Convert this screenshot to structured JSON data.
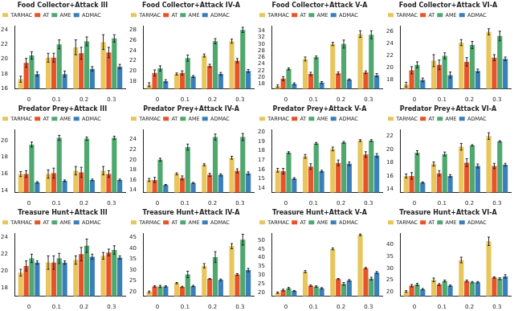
{
  "chart_data": [
    {
      "type": "bar",
      "title": "Food Collector+Attack III",
      "categories": [
        "0",
        "0.1",
        "0.2",
        "0.3"
      ],
      "ylim": [
        16,
        24.5
      ],
      "yticks": [
        16,
        18,
        20,
        22,
        24
      ],
      "grid": false,
      "legend": "top",
      "series": [
        {
          "name": "TARMAC",
          "color": "#e8c65e",
          "values": [
            17.3,
            20.2,
            21.6,
            22.3
          ],
          "errors": [
            0.4,
            0.6,
            1.0,
            1.0
          ]
        },
        {
          "name": "AT",
          "color": "#e8542a",
          "values": [
            19.5,
            20.2,
            20.8,
            20.9
          ],
          "errors": [
            0.6,
            0.6,
            0.8,
            0.7
          ]
        },
        {
          "name": "AME",
          "color": "#4fa86f",
          "values": [
            20.5,
            22.0,
            22.4,
            22.8
          ],
          "errors": [
            0.5,
            0.6,
            0.6,
            0.5
          ]
        },
        {
          "name": "ADMAC",
          "color": "#3b7fb8",
          "values": [
            18.0,
            18.0,
            18.7,
            19.0
          ],
          "errors": [
            0.3,
            0.4,
            0.3,
            0.3
          ]
        }
      ]
    },
    {
      "type": "bar",
      "title": "Food Collector+Attack IV-A",
      "categories": [
        "0",
        "0.1",
        "0.2",
        "0.3"
      ],
      "ylim": [
        16.5,
        28.8
      ],
      "yticks": [
        18,
        20,
        22,
        24,
        26,
        28
      ],
      "grid": false,
      "legend": "top",
      "series": [
        {
          "name": "TARMAC",
          "color": "#e8c65e",
          "values": [
            17.3,
            19.4,
            23.0,
            25.8
          ],
          "errors": [
            0.4,
            0.2,
            0.3,
            0.4
          ]
        },
        {
          "name": "AT",
          "color": "#e8542a",
          "values": [
            19.6,
            19.6,
            21.0,
            22.0
          ],
          "errors": [
            0.6,
            0.4,
            0.3,
            0.4
          ]
        },
        {
          "name": "AME",
          "color": "#4fa86f",
          "values": [
            20.5,
            22.5,
            25.8,
            28.0
          ],
          "errors": [
            0.5,
            0.6,
            0.5,
            0.5
          ]
        },
        {
          "name": "ADMAC",
          "color": "#3b7fb8",
          "values": [
            18.0,
            18.9,
            19.4,
            20.0
          ],
          "errors": [
            0.3,
            0.2,
            0.3,
            0.3
          ]
        }
      ]
    },
    {
      "type": "bar",
      "title": "Food Collector+Attack V-A",
      "categories": [
        "0",
        "0.1",
        "0.2",
        "0.3"
      ],
      "ylim": [
        16.5,
        35.5
      ],
      "yticks": [
        18,
        20,
        22,
        24,
        26,
        28,
        30,
        32,
        34
      ],
      "grid": false,
      "legend": "top",
      "series": [
        {
          "name": "TARMAC",
          "color": "#e8c65e",
          "values": [
            17.3,
            25.5,
            30.0,
            33.0
          ],
          "errors": [
            0.4,
            0.6,
            0.5,
            1.0
          ]
        },
        {
          "name": "AT",
          "color": "#e8542a",
          "values": [
            19.6,
            21.0,
            21.2,
            21.5
          ],
          "errors": [
            0.6,
            0.5,
            0.4,
            0.4
          ]
        },
        {
          "name": "AME",
          "color": "#4fa86f",
          "values": [
            22.5,
            26.0,
            30.0,
            32.8
          ],
          "errors": [
            0.3,
            0.4,
            1.2,
            1.2
          ]
        },
        {
          "name": "ADMAC",
          "color": "#3b7fb8",
          "values": [
            18.0,
            18.4,
            19.3,
            20.6
          ],
          "errors": [
            0.3,
            0.3,
            0.2,
            0.5
          ]
        }
      ]
    },
    {
      "type": "bar",
      "title": "Food Collector+Attack VI-A",
      "categories": [
        "0",
        "0.1",
        "0.2",
        "0.3"
      ],
      "ylim": [
        16.5,
        27
      ],
      "yticks": [
        18,
        20,
        22,
        24,
        26
      ],
      "grid": false,
      "legend": "top",
      "series": [
        {
          "name": "TARMAC",
          "color": "#e8c65e",
          "values": [
            17.2,
            21.2,
            24.2,
            26.0
          ],
          "errors": [
            0.4,
            1.0,
            0.5,
            0.5
          ]
        },
        {
          "name": "AT",
          "color": "#e8542a",
          "values": [
            19.6,
            20.5,
            21.0,
            21.7
          ],
          "errors": [
            0.6,
            0.8,
            0.7,
            0.5
          ]
        },
        {
          "name": "AME",
          "color": "#4fa86f",
          "values": [
            20.5,
            22.0,
            23.8,
            25.3
          ],
          "errors": [
            0.5,
            0.5,
            0.6,
            0.8
          ]
        },
        {
          "name": "ADMAC",
          "color": "#3b7fb8",
          "values": [
            18.0,
            18.8,
            19.5,
            21.5
          ],
          "errors": [
            0.3,
            0.5,
            0.3,
            0.3
          ]
        }
      ]
    },
    {
      "type": "bar",
      "title": "Predator Prey+Attack III",
      "categories": [
        "0",
        "0.1",
        "0.2",
        "0.3"
      ],
      "ylim": [
        13.8,
        21.3
      ],
      "yticks": [
        14,
        16,
        18,
        20
      ],
      "grid": false,
      "legend": "top",
      "series": [
        {
          "name": "TARMAC",
          "color": "#e8c65e",
          "values": [
            16.0,
            16.0,
            16.4,
            16.4
          ],
          "errors": [
            0.3,
            0.5,
            0.5,
            0.5
          ]
        },
        {
          "name": "AT",
          "color": "#e8542a",
          "values": [
            16.0,
            16.1,
            16.2,
            16.0
          ],
          "errors": [
            0.4,
            0.6,
            0.6,
            0.4
          ]
        },
        {
          "name": "AME",
          "color": "#4fa86f",
          "values": [
            19.5,
            20.3,
            20.2,
            20.3
          ],
          "errors": [
            0.3,
            0.3,
            0.2,
            0.2
          ]
        },
        {
          "name": "ADMAC",
          "color": "#3b7fb8",
          "values": [
            15.0,
            15.2,
            15.3,
            15.3
          ],
          "errors": [
            0.1,
            0.1,
            0.1,
            0.1
          ]
        }
      ]
    },
    {
      "type": "bar",
      "title": "Predator Prey+Attack IV-A",
      "categories": [
        "0",
        "0.1",
        "0.2",
        "0.3"
      ],
      "ylim": [
        13.5,
        26
      ],
      "yticks": [
        14,
        16,
        18,
        20,
        22,
        24
      ],
      "grid": false,
      "legend": "top",
      "series": [
        {
          "name": "TARMAC",
          "color": "#e8c65e",
          "values": [
            16.0,
            17.2,
            19.0,
            20.4
          ],
          "errors": [
            0.3,
            0.2,
            0.2,
            0.3
          ]
        },
        {
          "name": "AT",
          "color": "#e8542a",
          "values": [
            16.0,
            16.4,
            17.0,
            17.8
          ],
          "errors": [
            0.5,
            0.4,
            0.3,
            0.4
          ]
        },
        {
          "name": "AME",
          "color": "#4fa86f",
          "values": [
            20.0,
            22.5,
            24.5,
            24.5
          ],
          "errors": [
            0.3,
            0.6,
            0.6,
            0.7
          ]
        },
        {
          "name": "ADMAC",
          "color": "#3b7fb8",
          "values": [
            15.0,
            15.4,
            17.0,
            17.3
          ],
          "errors": [
            0.1,
            0.1,
            0.2,
            0.3
          ]
        }
      ]
    },
    {
      "type": "bar",
      "title": "Predator Prey+Attack V-A",
      "categories": [
        "0",
        "0.1",
        "0.2",
        "0.3"
      ],
      "ylim": [
        13.5,
        20.3
      ],
      "yticks": [
        14,
        15,
        16,
        17,
        18,
        19,
        20
      ],
      "grid": false,
      "legend": "top",
      "series": [
        {
          "name": "TARMAC",
          "color": "#e8c65e",
          "values": [
            15.9,
            17.4,
            18.2,
            19.1
          ],
          "errors": [
            0.2,
            0.2,
            0.2,
            0.1
          ]
        },
        {
          "name": "AT",
          "color": "#e8542a",
          "values": [
            15.8,
            16.3,
            16.7,
            17.6
          ],
          "errors": [
            0.3,
            0.3,
            0.3,
            0.3
          ]
        },
        {
          "name": "AME",
          "color": "#4fa86f",
          "values": [
            17.8,
            18.8,
            18.9,
            19.1
          ],
          "errors": [
            0.1,
            0.1,
            0.1,
            0.1
          ]
        },
        {
          "name": "ADMAC",
          "color": "#3b7fb8",
          "values": [
            15.0,
            15.8,
            16.6,
            17.5
          ],
          "errors": [
            0.1,
            0.1,
            0.2,
            0.2
          ]
        }
      ]
    },
    {
      "type": "bar",
      "title": "Predator Prey+Attack VI-A",
      "categories": [
        "0",
        "0.1",
        "0.2",
        "0.3"
      ],
      "ylim": [
        13.5,
        23
      ],
      "yticks": [
        14,
        16,
        18,
        20,
        22
      ],
      "grid": false,
      "legend": "top",
      "series": [
        {
          "name": "TARMAC",
          "color": "#e8c65e",
          "values": [
            16.0,
            17.8,
            20.4,
            22.0
          ],
          "errors": [
            0.3,
            0.3,
            0.5,
            0.5
          ]
        },
        {
          "name": "AT",
          "color": "#e8542a",
          "values": [
            16.0,
            16.4,
            18.0,
            17.5
          ],
          "errors": [
            0.5,
            0.4,
            0.6,
            0.4
          ]
        },
        {
          "name": "AME",
          "color": "#4fa86f",
          "values": [
            19.5,
            19.3,
            20.6,
            21.2
          ],
          "errors": [
            0.3,
            0.3,
            0.1,
            0.1
          ]
        },
        {
          "name": "ADMAC",
          "color": "#3b7fb8",
          "values": [
            15.0,
            16.0,
            17.5,
            17.7
          ],
          "errors": [
            0.1,
            0.2,
            0.3,
            0.2
          ]
        }
      ]
    },
    {
      "type": "bar",
      "title": "Treasure Hunt+Attack III",
      "categories": [
        "0",
        "0.1",
        "0.2",
        "0.3"
      ],
      "ylim": [
        17,
        24.5
      ],
      "yticks": [
        18,
        20,
        22,
        24
      ],
      "grid": false,
      "legend": "top",
      "series": [
        {
          "name": "TARMAC",
          "color": "#e8c65e",
          "values": [
            19.8,
            21.0,
            21.3,
            21.8
          ],
          "errors": [
            0.4,
            0.8,
            0.5,
            0.4
          ]
        },
        {
          "name": "AT",
          "color": "#e8542a",
          "values": [
            20.6,
            21.0,
            22.0,
            22.2
          ],
          "errors": [
            0.6,
            0.8,
            0.8,
            0.4
          ]
        },
        {
          "name": "AME",
          "color": "#4fa86f",
          "values": [
            21.5,
            21.5,
            23.0,
            22.5
          ],
          "errors": [
            0.5,
            0.6,
            0.8,
            0.5
          ]
        },
        {
          "name": "ADMAC",
          "color": "#3b7fb8",
          "values": [
            21.0,
            21.0,
            21.7,
            21.6
          ],
          "errors": [
            0.2,
            0.2,
            0.3,
            0.2
          ]
        }
      ]
    },
    {
      "type": "bar",
      "title": "Treasure Hunt+Attack IV-A",
      "categories": [
        "0",
        "0.1",
        "0.2",
        "0.3"
      ],
      "ylim": [
        18,
        47
      ],
      "yticks": [
        20,
        25,
        30,
        35,
        40,
        45
      ],
      "grid": false,
      "legend": "top",
      "series": [
        {
          "name": "TARMAC",
          "color": "#e8c65e",
          "values": [
            20.0,
            24.0,
            32.0,
            41.0
          ],
          "errors": [
            0.4,
            0.3,
            1.0,
            1.2
          ]
        },
        {
          "name": "AT",
          "color": "#e8542a",
          "values": [
            22.5,
            22.3,
            26.0,
            28.0
          ],
          "errors": [
            0.3,
            0.3,
            0.2,
            0.4
          ]
        },
        {
          "name": "AME",
          "color": "#4fa86f",
          "values": [
            22.5,
            28.0,
            36.0,
            44.0
          ],
          "errors": [
            0.5,
            1.5,
            2.5,
            2.5
          ]
        },
        {
          "name": "ADMAC",
          "color": "#3b7fb8",
          "values": [
            22.5,
            22.7,
            25.5,
            30.0
          ],
          "errors": [
            0.3,
            0.3,
            0.4,
            0.8
          ]
        }
      ]
    },
    {
      "type": "bar",
      "title": "Treasure Hunt+Attack V-A",
      "categories": [
        "0",
        "0.1",
        "0.2",
        "0.3"
      ],
      "ylim": [
        18,
        54
      ],
      "yticks": [
        20,
        25,
        30,
        35,
        40,
        45,
        50
      ],
      "grid": false,
      "legend": "top",
      "series": [
        {
          "name": "TARMAC",
          "color": "#e8c65e",
          "values": [
            20.0,
            32.0,
            45.0,
            53.0
          ],
          "errors": [
            0.4,
            0.6,
            0.5,
            0.5
          ]
        },
        {
          "name": "AT",
          "color": "#e8542a",
          "values": [
            21.5,
            24.0,
            27.8,
            34.0
          ],
          "errors": [
            0.5,
            0.4,
            0.3,
            0.4
          ]
        },
        {
          "name": "AME",
          "color": "#4fa86f",
          "values": [
            22.5,
            23.5,
            25.0,
            28.0
          ],
          "errors": [
            0.5,
            0.4,
            0.8,
            0.8
          ]
        },
        {
          "name": "ADMAC",
          "color": "#3b7fb8",
          "values": [
            21.0,
            22.5,
            27.0,
            31.5
          ],
          "errors": [
            0.3,
            0.4,
            0.5,
            0.6
          ]
        }
      ]
    },
    {
      "type": "bar",
      "title": "Treasure Hunt+Attack VI-A",
      "categories": [
        "0",
        "0.1",
        "0.2",
        "0.3"
      ],
      "ylim": [
        18,
        45
      ],
      "yticks": [
        20,
        25,
        30,
        35,
        40
      ],
      "grid": false,
      "legend": "top",
      "series": [
        {
          "name": "TARMAC",
          "color": "#e8c65e",
          "values": [
            20.0,
            25.0,
            33.5,
            41.5
          ],
          "errors": [
            0.4,
            0.8,
            1.2,
            1.8
          ]
        },
        {
          "name": "AT",
          "color": "#e8542a",
          "values": [
            22.5,
            23.0,
            24.5,
            26.0
          ],
          "errors": [
            0.5,
            0.4,
            0.4,
            0.3
          ]
        },
        {
          "name": "AME",
          "color": "#4fa86f",
          "values": [
            23.0,
            24.5,
            24.0,
            25.5
          ],
          "errors": [
            0.5,
            0.4,
            0.3,
            0.4
          ]
        },
        {
          "name": "ADMAC",
          "color": "#3b7fb8",
          "values": [
            21.0,
            22.5,
            24.0,
            26.5
          ],
          "errors": [
            0.3,
            0.3,
            0.3,
            0.7
          ]
        }
      ]
    }
  ]
}
